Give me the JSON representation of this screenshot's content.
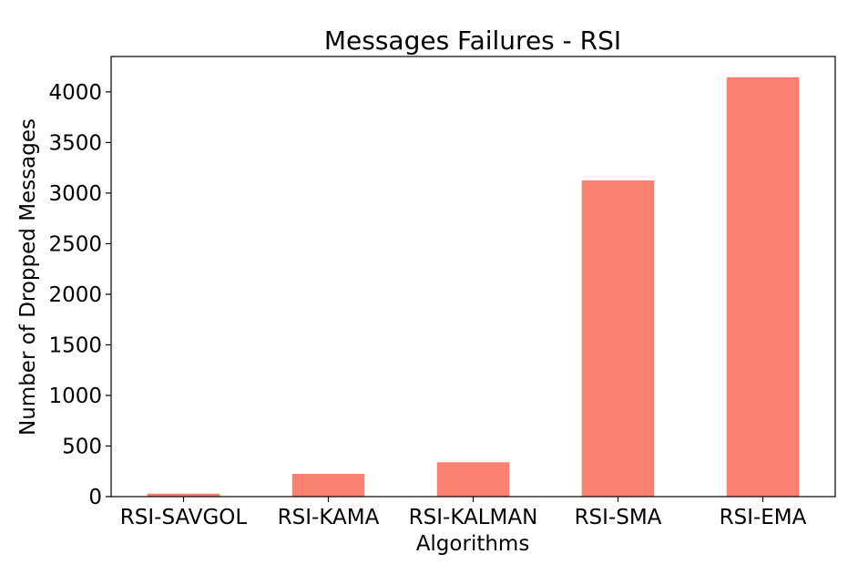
{
  "chart_data": {
    "type": "bar",
    "title": "Messages Failures - RSI",
    "xlabel": "Algorithms",
    "ylabel": "Number of Dropped Messages",
    "categories": [
      "RSI-SAVGOL",
      "RSI-KAMA",
      "RSI-KALMAN",
      "RSI-SMA",
      "RSI-EMA"
    ],
    "values": [
      30,
      225,
      340,
      3125,
      4145
    ],
    "ylim": [
      0,
      4350
    ],
    "yticks": [
      0,
      500,
      1000,
      1500,
      2000,
      2500,
      3000,
      3500,
      4000
    ],
    "grid": false,
    "legend": "none",
    "bar_color": "#fa8072"
  }
}
